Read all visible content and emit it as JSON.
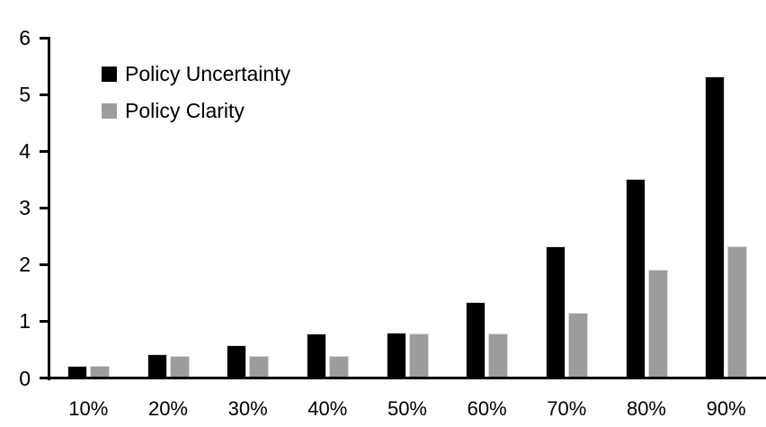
{
  "chart_data": {
    "type": "bar",
    "title": "",
    "xlabel": "",
    "ylabel": "",
    "categories": [
      "10%",
      "20%",
      "30%",
      "40%",
      "50%",
      "60%",
      "70%",
      "80%",
      "90%"
    ],
    "series": [
      {
        "name": "Policy Uncertainty",
        "color": "#000000",
        "values": [
          0.2,
          0.4,
          0.57,
          0.77,
          0.78,
          1.33,
          2.3,
          3.5,
          5.3
        ]
      },
      {
        "name": "Policy Clarity",
        "color": "#9c9c9c",
        "values": [
          0.2,
          0.38,
          0.38,
          0.38,
          0.77,
          0.77,
          1.13,
          1.9,
          2.3
        ]
      }
    ],
    "ylim": [
      0,
      6
    ],
    "yticks": [
      0,
      1,
      2,
      3,
      4,
      5,
      6
    ],
    "grid": false,
    "legend_position": "upper-left-inside",
    "axis_color": "#000000",
    "bar_outline_color": "#d9d9d9",
    "background_color": "#ffffff"
  }
}
